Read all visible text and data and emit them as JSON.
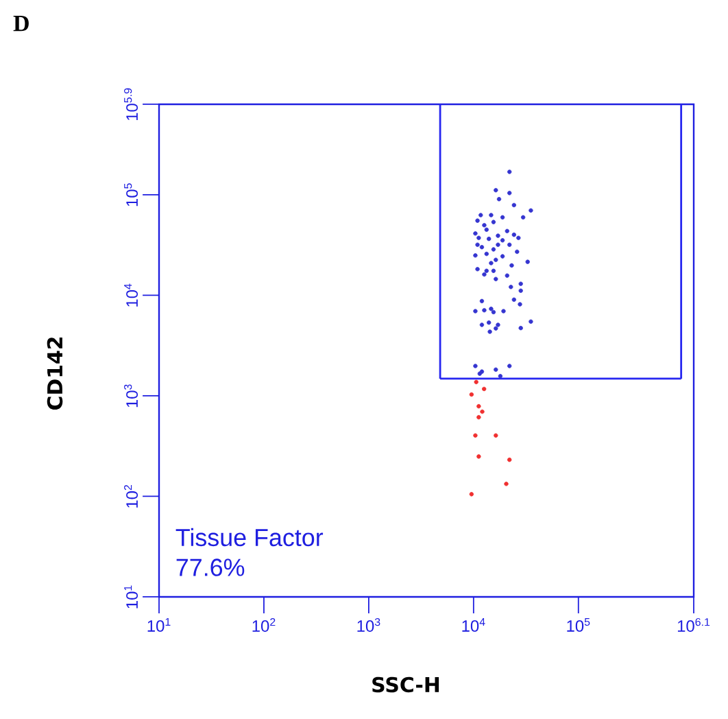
{
  "chart_data": {
    "type": "scatter",
    "title": "D",
    "xlabel": "SSC-H",
    "ylabel": "CD142",
    "log": "xy",
    "xlim": [
      10,
      1258925
    ],
    "ylim": [
      10,
      794328
    ],
    "xticks": [
      {
        "value": 10,
        "label": "10$^{1}$"
      },
      {
        "value": 100,
        "label": "10$^{2}$"
      },
      {
        "value": 1000,
        "label": "10$^{3}$"
      },
      {
        "value": 10000,
        "label": "10$^{4}$"
      },
      {
        "value": 100000,
        "label": "10$^{5}$"
      },
      {
        "value": 1258925,
        "label": "10$^{6.1}$"
      }
    ],
    "yticks": [
      {
        "value": 10,
        "label": "10$^{1}$"
      },
      {
        "value": 100,
        "label": "10$^{2}$"
      },
      {
        "value": 1000,
        "label": "10$^{3}$"
      },
      {
        "value": 10000,
        "label": "10$^{4}$"
      },
      {
        "value": 100000,
        "label": "10$^{5}$"
      },
      {
        "value": 794328,
        "label": "10$^{5.9}$"
      }
    ],
    "annotations": [
      "Tissue Factor",
      "77.6%"
    ],
    "series": [
      {
        "type": "line",
        "marker": "none",
        "color": "#2626f0",
        "x": [
          4800,
          955000
        ],
        "values": [
          1480,
          1480
        ]
      },
      {
        "type": "line",
        "marker": "none",
        "color": "#2626f0",
        "x": [
          4800,
          4800
        ],
        "values": [
          1480,
          794328
        ]
      },
      {
        "type": "line",
        "marker": "none",
        "color": "#2626f0",
        "x": [
          955000,
          955000
        ],
        "values": [
          1480,
          794328
        ]
      },
      {
        "marker": "circle",
        "color": "#3535d0",
        "x": [
          22000,
          16300,
          22000,
          17500,
          24300,
          35200,
          11700,
          14700,
          10900,
          18900,
          29700,
          15500,
          12650,
          10400,
          13300,
          20900,
          17100,
          24300,
          11200,
          14000,
          18900,
          26800,
          10900,
          12000,
          17100,
          22000,
          15500,
          26000,
          10400,
          13300,
          18900,
          16300,
          14700,
          32800,
          23100,
          10900,
          13300,
          15500,
          20900,
          12650,
          16300,
          28200,
          22700,
          28200,
          12000,
          24300,
          27700,
          10400,
          12650,
          14700,
          15500,
          19300,
          12000,
          14000,
          17100,
          16300,
          14300,
          28200,
          35200,
          10400,
          12000,
          16300,
          11450,
          22000,
          18000
        ],
        "values": [
          169000,
          111000,
          104000,
          90400,
          78900,
          69700,
          62700,
          62700,
          55200,
          59600,
          59600,
          53500,
          49800,
          41200,
          44900,
          43500,
          39100,
          40000,
          37200,
          36400,
          35200,
          37200,
          31800,
          30100,
          31800,
          31800,
          28600,
          27100,
          24900,
          25800,
          24400,
          22500,
          20900,
          21500,
          19800,
          18200,
          17500,
          17500,
          15700,
          16100,
          14500,
          13000,
          12100,
          11100,
          8750,
          9040,
          8130,
          6950,
          7100,
          7330,
          6800,
          6950,
          5080,
          5350,
          5080,
          4680,
          4340,
          4720,
          5470,
          1980,
          1740,
          1820,
          1660,
          1980,
          1570
        ]
      },
      {
        "marker": "circle",
        "color": "#f03030",
        "x": [
          10600,
          12600,
          9560,
          11200,
          12100,
          11200,
          10400,
          16300,
          11200,
          22000,
          20500,
          9560
        ],
        "values": [
          1370,
          1170,
          1030,
          787,
          695,
          612,
          403,
          403,
          249,
          231,
          133,
          105
        ]
      }
    ]
  }
}
